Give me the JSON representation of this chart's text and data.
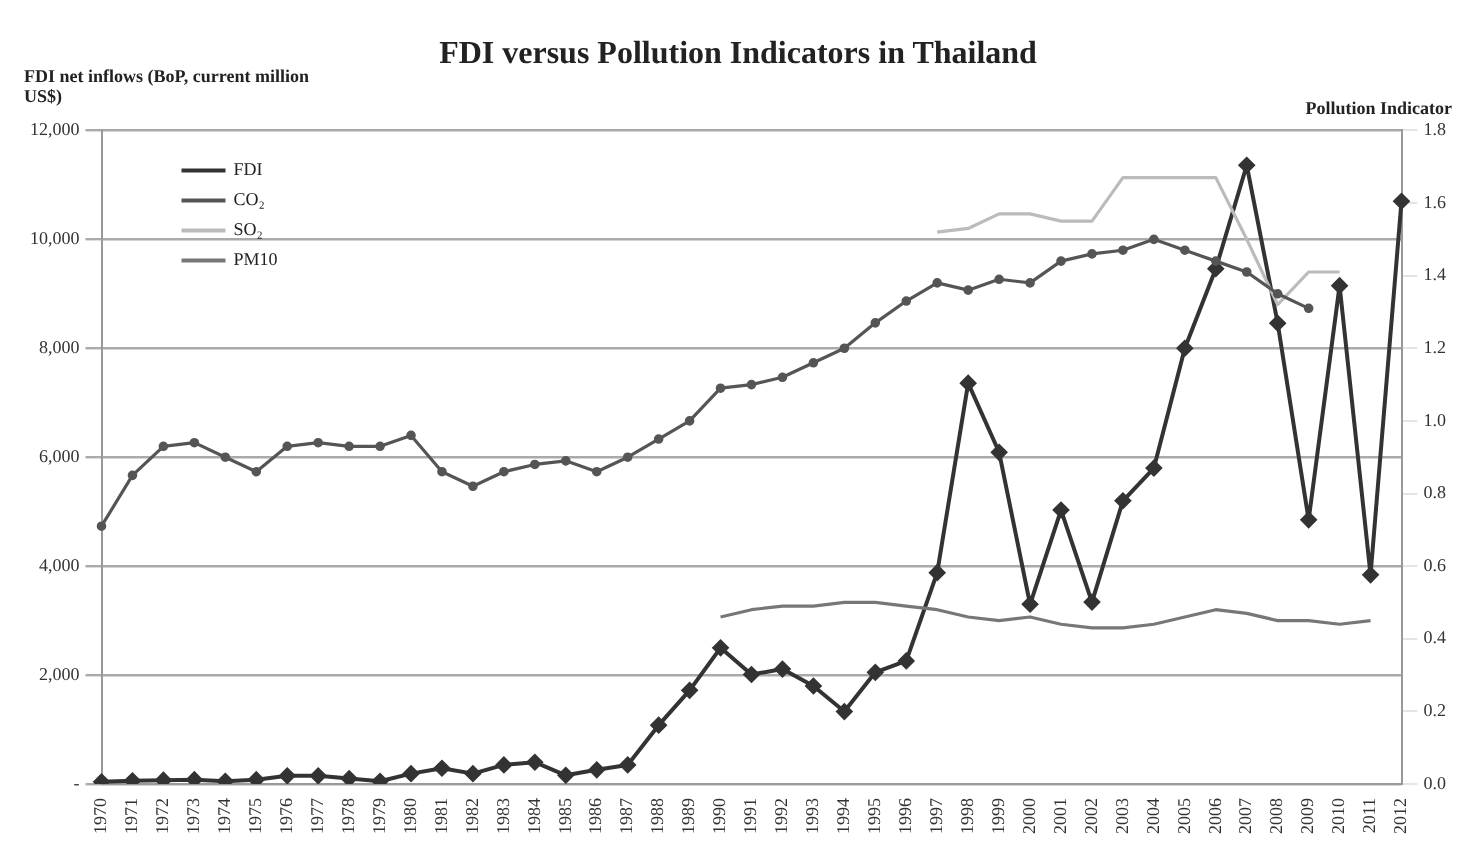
{
  "chart_data": {
    "type": "line",
    "title": "FDI versus Pollution Indicators in Thailand",
    "ylabel": "FDI net inflows (BoP, current million US$)",
    "y2label": "Pollution Indicator",
    "categories": [
      "1970",
      "1971",
      "1972",
      "1973",
      "1974",
      "1975",
      "1976",
      "1977",
      "1978",
      "1979",
      "1980",
      "1981",
      "1982",
      "1983",
      "1984",
      "1985",
      "1986",
      "1987",
      "1988",
      "1989",
      "1990",
      "1991",
      "1992",
      "1993",
      "1994",
      "1995",
      "1996",
      "1997",
      "1998",
      "1999",
      "2000",
      "2001",
      "2002",
      "2003",
      "2004",
      "2005",
      "2006",
      "2007",
      "2008",
      "2009",
      "2010",
      "2011",
      "2012"
    ],
    "series": [
      {
        "name": "FDI",
        "color": "#333333",
        "marker": "diamond",
        "values": [
          40,
          60,
          70,
          80,
          50,
          80,
          150,
          150,
          100,
          50,
          190,
          290,
          190,
          350,
          400,
          160,
          260,
          350,
          1080,
          1720,
          2500,
          2010,
          2110,
          1800,
          1330,
          2050,
          2260,
          3880,
          7360,
          6090,
          3300,
          5030,
          3340,
          5200,
          5800,
          8000,
          9460,
          11360,
          8460,
          4850,
          9150,
          3840,
          10700
        ]
      },
      {
        "name": "CO₂",
        "color": "#555555",
        "marker": "circle",
        "axis": "y2",
        "values": [
          0.71,
          0.85,
          0.93,
          0.94,
          0.9,
          0.86,
          0.93,
          0.94,
          0.93,
          0.93,
          0.96,
          0.86,
          0.82,
          0.86,
          0.88,
          0.89,
          0.86,
          0.9,
          0.95,
          1.0,
          1.09,
          1.1,
          1.12,
          1.16,
          1.2,
          1.27,
          1.33,
          1.38,
          1.36,
          1.39,
          1.38,
          1.44,
          1.46,
          1.47,
          1.5,
          1.47,
          1.44,
          1.41,
          1.35,
          1.31,
          null,
          null,
          null
        ]
      },
      {
        "name": "SO₂",
        "color": "#bbbbbb",
        "marker": "none",
        "axis": "y2",
        "values": [
          null,
          null,
          null,
          null,
          null,
          null,
          null,
          null,
          null,
          null,
          null,
          null,
          null,
          null,
          null,
          null,
          null,
          null,
          null,
          null,
          null,
          null,
          null,
          null,
          null,
          null,
          null,
          1.52,
          1.53,
          1.57,
          1.57,
          1.55,
          1.55,
          1.67,
          1.67,
          1.67,
          1.67,
          1.5,
          1.32,
          1.41,
          1.41,
          null,
          null
        ]
      },
      {
        "name": "PM10",
        "color": "#777777",
        "marker": "none",
        "axis": "y2",
        "values": [
          null,
          null,
          null,
          null,
          null,
          null,
          null,
          null,
          null,
          null,
          null,
          null,
          null,
          null,
          null,
          null,
          null,
          null,
          null,
          null,
          0.46,
          0.48,
          0.49,
          0.49,
          0.5,
          0.5,
          0.49,
          0.48,
          0.46,
          0.45,
          0.46,
          0.44,
          0.43,
          0.43,
          0.44,
          0.46,
          0.48,
          0.47,
          0.45,
          0.45,
          0.44,
          0.45,
          null
        ]
      }
    ],
    "ylim": [
      0,
      12000
    ],
    "yticks": [
      {
        "value": 0,
        "label": "-"
      },
      {
        "value": 2000,
        "label": "2,000"
      },
      {
        "value": 4000,
        "label": "4,000"
      },
      {
        "value": 6000,
        "label": "6,000"
      },
      {
        "value": 8000,
        "label": "8,000"
      },
      {
        "value": 10000,
        "label": "10,000"
      },
      {
        "value": 12000,
        "label": "12,000"
      }
    ],
    "y2lim": [
      0,
      1.8
    ],
    "y2ticks": [
      {
        "value": 0,
        "label": "0.0"
      },
      {
        "value": 0.2,
        "label": "0.2"
      },
      {
        "value": 0.4,
        "label": "0.4"
      },
      {
        "value": 0.6,
        "label": "0.6"
      },
      {
        "value": 0.8,
        "label": "0.8"
      },
      {
        "value": 1.0,
        "label": "1.0"
      },
      {
        "value": 1.2,
        "label": "1.2"
      },
      {
        "value": 1.4,
        "label": "1.4"
      },
      {
        "value": 1.6,
        "label": "1.6"
      },
      {
        "value": 1.8,
        "label": "1.8"
      }
    ],
    "grid": "y",
    "legend": "top left"
  }
}
